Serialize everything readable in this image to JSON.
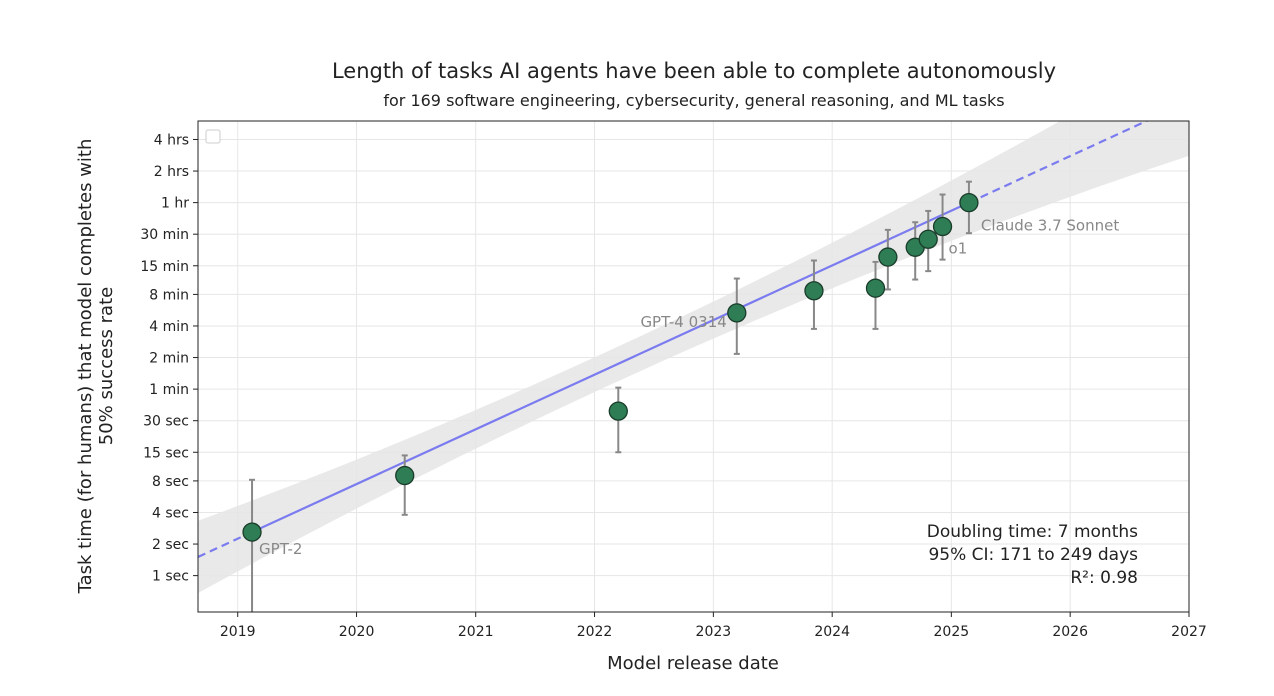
{
  "chart_data": {
    "type": "scatter",
    "title": "Length of tasks AI agents have been able to complete autonomously",
    "subtitle": "for 169 software engineering, cybersecurity, general reasoning, and ML tasks",
    "xlabel": "Model release date",
    "ylabel": "Task time (for humans) that model completes with 50% success rate",
    "ylabel_lines": [
      "Task time (for humans) that model completes with",
      "50% success rate"
    ],
    "x_scale": "date",
    "y_scale": "log",
    "xlim": [
      "2018-09-01",
      "2027-01-01"
    ],
    "ylim_seconds": [
      0.45,
      21600
    ],
    "grid": true,
    "legend": "top-left",
    "x_ticks": [
      {
        "label": "2019",
        "value": "2019-01-01"
      },
      {
        "label": "2020",
        "value": "2020-01-01"
      },
      {
        "label": "2021",
        "value": "2021-01-01"
      },
      {
        "label": "2022",
        "value": "2022-01-01"
      },
      {
        "label": "2023",
        "value": "2023-01-01"
      },
      {
        "label": "2024",
        "value": "2024-01-01"
      },
      {
        "label": "2025",
        "value": "2025-01-01"
      },
      {
        "label": "2026",
        "value": "2026-01-01"
      },
      {
        "label": "2027",
        "value": "2027-01-01"
      }
    ],
    "y_ticks": [
      {
        "label": "1 sec",
        "seconds": 1
      },
      {
        "label": "2 sec",
        "seconds": 2
      },
      {
        "label": "4 sec",
        "seconds": 4
      },
      {
        "label": "8 sec",
        "seconds": 8
      },
      {
        "label": "15 sec",
        "seconds": 15
      },
      {
        "label": "30 sec",
        "seconds": 30
      },
      {
        "label": "1 min",
        "seconds": 60
      },
      {
        "label": "2 min",
        "seconds": 120
      },
      {
        "label": "4 min",
        "seconds": 240
      },
      {
        "label": "8 min",
        "seconds": 480
      },
      {
        "label": "15 min",
        "seconds": 900
      },
      {
        "label": "30 min",
        "seconds": 1800
      },
      {
        "label": "1 hr",
        "seconds": 3600
      },
      {
        "label": "2 hrs",
        "seconds": 7200
      },
      {
        "label": "4 hrs",
        "seconds": 14400
      }
    ],
    "points": [
      {
        "label": "GPT-2",
        "date": "2019-02-14",
        "seconds": 2.6,
        "ci_low": 0.4,
        "ci_high": 8.2
      },
      {
        "label": "",
        "date": "2020-05-28",
        "seconds": 9,
        "ci_low": 3.8,
        "ci_high": 14
      },
      {
        "label": "",
        "date": "2022-03-15",
        "seconds": 37,
        "ci_low": 15,
        "ci_high": 62
      },
      {
        "label": "GPT-4 0314",
        "date": "2023-03-14",
        "seconds": 320,
        "ci_low": 130,
        "ci_high": 680
      },
      {
        "label": "",
        "date": "2023-11-06",
        "seconds": 520,
        "ci_low": 225,
        "ci_high": 1010
      },
      {
        "label": "",
        "date": "2024-05-13",
        "seconds": 550,
        "ci_low": 225,
        "ci_high": 980
      },
      {
        "label": "",
        "date": "2024-06-20",
        "seconds": 1090,
        "ci_low": 535,
        "ci_high": 1980
      },
      {
        "label": "",
        "date": "2024-09-12",
        "seconds": 1350,
        "ci_low": 665,
        "ci_high": 2340
      },
      {
        "label": "",
        "date": "2024-10-22",
        "seconds": 1610,
        "ci_low": 800,
        "ci_high": 3000
      },
      {
        "label": "o1",
        "date": "2024-12-05",
        "seconds": 2130,
        "ci_low": 1030,
        "ci_high": 4300
      },
      {
        "label": "Claude 3.7 Sonnet",
        "date": "2025-02-24",
        "seconds": 3600,
        "ci_low": 1840,
        "ci_high": 5700
      }
    ],
    "trend": {
      "doubling_months": 7,
      "solid_range": [
        "2019-02-14",
        "2025-02-24"
      ],
      "ci_band": true
    },
    "annotations": {
      "doubling": "Doubling time: 7 months",
      "ci": "95% CI: 171 to 249 days",
      "r2": "R²: 0.98"
    },
    "colors": {
      "marker_fill": "#2e7d55",
      "marker_edge": "#1a3c2a",
      "trend": "#7b7bf0",
      "band": "#e5e5e5",
      "errorbar": "#888888",
      "grid": "#e6e6e6",
      "annotation": "#888888"
    }
  }
}
